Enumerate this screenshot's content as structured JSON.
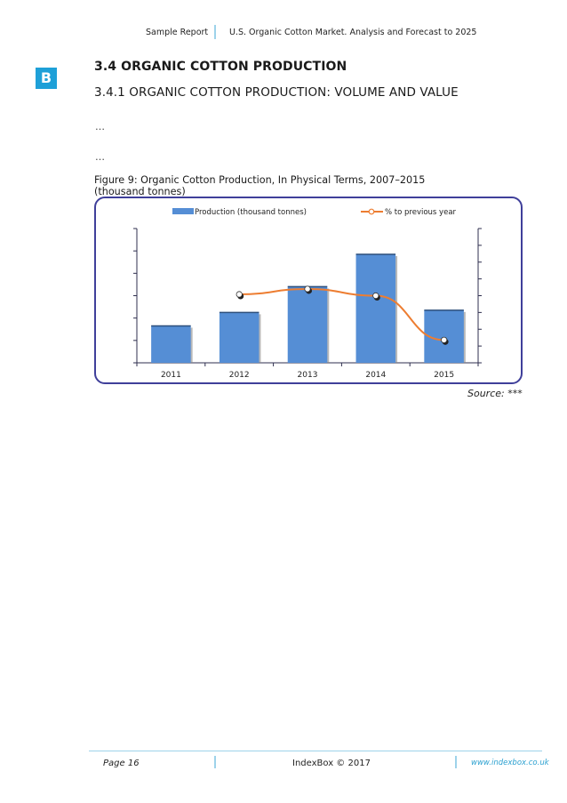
{
  "header": {
    "left": "Sample Report",
    "right": "U.S. Organic Cotton Market. Analysis and Forecast to 2025"
  },
  "logo": {
    "letter": "B",
    "color": "#1ea0d8"
  },
  "section": {
    "heading": "3.4 ORGANIC COTTON PRODUCTION",
    "subheading": "3.4.1 ORGANIC COTTON PRODUCTION: VOLUME AND VALUE",
    "ellipsis_1": "…",
    "ellipsis_2": "…"
  },
  "figure": {
    "caption_line1": "Figure 9: Organic Cotton Production, In Physical Terms, 2007–2015",
    "caption_line2": "(thousand tonnes)",
    "source": "Source: ***"
  },
  "chart_data": {
    "type": "bar",
    "categories": [
      "2011",
      "2012",
      "2013",
      "2014",
      "2015"
    ],
    "series": [
      {
        "name": "Production (thousand tonnes)",
        "kind": "bar",
        "values": [
          33,
          45,
          68,
          97,
          47
        ],
        "color": "#558ed5"
      },
      {
        "name": "% to previous year",
        "kind": "line",
        "values": [
          null,
          51,
          55,
          50,
          17
        ],
        "color": "#ed7d31"
      }
    ],
    "ylim_left": [
      0,
      120
    ],
    "ylim_right": [
      0,
      100
    ],
    "tick_labels_shown": false,
    "legend": "top",
    "grid": false
  },
  "footer": {
    "page": "Page 16",
    "copyright": "IndexBox © 2017",
    "url": "www.indexbox.co.uk"
  }
}
